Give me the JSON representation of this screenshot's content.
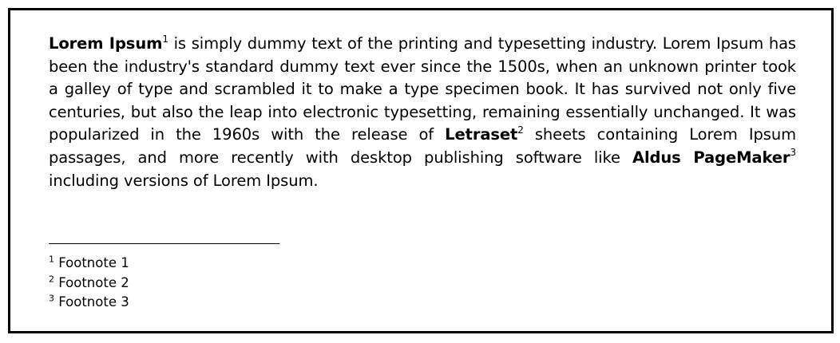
{
  "document": {
    "paragraph": {
      "term1": "Lorem Ipsum",
      "ref1": "1",
      "text1": " is simply dummy text of the printing and typesetting industry. Lorem Ipsum has been the industry's standard dummy text ever since the 1500s, when an unknown printer took a galley of type and scrambled it to make a type specimen book. It has survived not only five centuries, but also the leap into electronic typesetting, remaining essentially unchanged. It was popularized in the 1960s with the release of ",
      "term2": "Letraset",
      "ref2": "2",
      "text2": " sheets containing Lorem Ipsum passages, and more recently with desktop publishing software like ",
      "term3": "Aldus PageMaker",
      "ref3": "3",
      "text3": " including versions of Lorem Ipsum."
    },
    "footnotes": [
      {
        "marker": "1",
        "text": " Footnote 1"
      },
      {
        "marker": "2",
        "text": " Footnote 2"
      },
      {
        "marker": "3",
        "text": " Footnote 3"
      }
    ]
  }
}
